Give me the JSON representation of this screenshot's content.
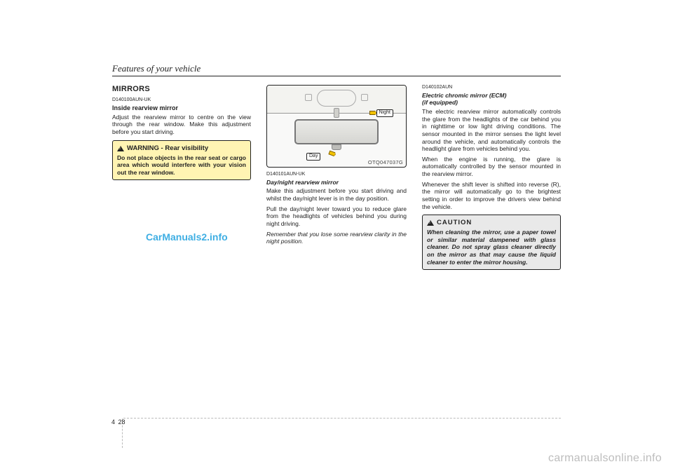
{
  "running_head": "Features of your vehicle",
  "section_title": "MIRRORS",
  "col1": {
    "code": "D140100AUN-UK",
    "heading": "Inside rearview mirror",
    "para": "Adjust the rearview mirror to centre on the view through the rear window. Make this adjustment before you start driving.",
    "warn_title": "WARNING - Rear visibility",
    "warn_body": "Do not place objects in the rear seat or cargo area which would interfere with your vision out the rear window."
  },
  "col2": {
    "fig_ref": "OTQ047037G",
    "label_night": "Night",
    "label_day": "Day",
    "code": "D140101AUN-UK",
    "heading": "Day/night rearview mirror",
    "p1": "Make this adjustment before you start driving and whilst the day/night lever is in the day position.",
    "p2": "Pull the day/night lever toward you to reduce glare from the headlights of vehicles behind you during night driving.",
    "p3": "Remember that you lose some rearview clarity in the night position."
  },
  "col3": {
    "code": "D140102AUN",
    "heading1": "Electric chromic mirror (ECM)",
    "heading2": "(if equipped)",
    "p1": "The electric rearview mirror automatically controls the glare from the headlights of the car behind you in nighttime or low light driving conditions. The sensor mounted in the mirror senses the light level around the vehicle, and automatically controls the headlight glare from vehicles behind you.",
    "p2": "When the engine is running, the glare is automatically controlled by the sensor mounted in the rearview mirror.",
    "p3": "Whenever the shift lever is shifted into reverse (R), the mirror will automatically go to the brightest setting in order to improve the drivers view behind the vehicle.",
    "caution_title": "CAUTION",
    "caution_body": "When cleaning the mirror, use a paper towel or similar material dampened with glass cleaner. Do not spray glass cleaner directly on the mirror as that may cause the liquid cleaner to enter the mirror housing."
  },
  "page": {
    "section": "4",
    "number": "28"
  },
  "watermark1": "CarManuals2.info",
  "watermark2": "carmanualsonline.info",
  "colors": {
    "warn_bg": "#fff4b3",
    "caution_bg": "#e9e9e9",
    "link_wm": "#2aa6e0",
    "footer_wm": "#bdbdbd",
    "arrow": "#f2c200"
  }
}
